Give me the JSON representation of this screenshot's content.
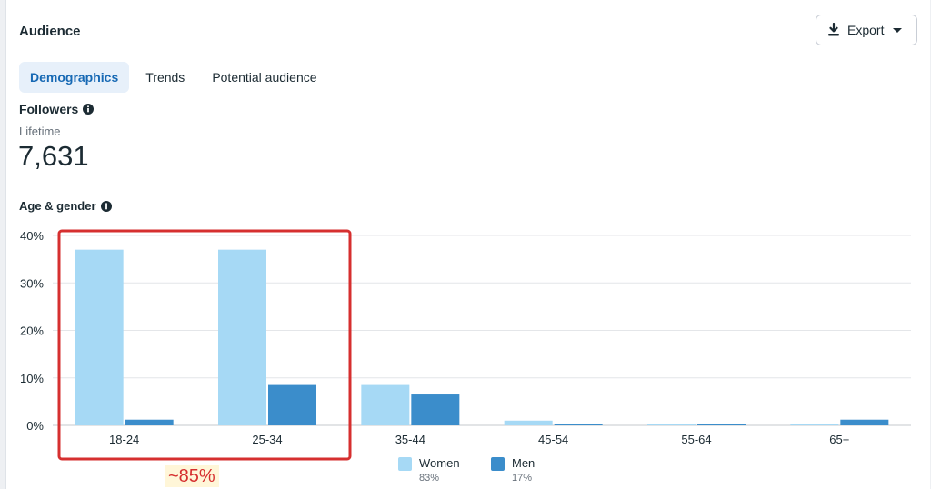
{
  "header": {
    "title": "Audience",
    "export_label": "Export"
  },
  "tabs": [
    {
      "label": "Demographics",
      "active": true
    },
    {
      "label": "Trends",
      "active": false
    },
    {
      "label": "Potential audience",
      "active": false
    }
  ],
  "followers": {
    "label": "Followers",
    "period": "Lifetime",
    "value": "7,631"
  },
  "age_gender": {
    "label": "Age & gender"
  },
  "legend": [
    {
      "name": "Women",
      "pct": "83%",
      "color": "#a6d9f5"
    },
    {
      "name": "Men",
      "pct": "17%",
      "color": "#3b8dcb"
    }
  ],
  "annotation": {
    "text": "~85%",
    "color": "#d62f2f"
  },
  "chart_data": {
    "type": "bar",
    "categories": [
      "18-24",
      "25-34",
      "35-44",
      "45-54",
      "55-64",
      "65+"
    ],
    "series": [
      {
        "name": "Women",
        "values": [
          37,
          37,
          8.5,
          1.0,
          0.2,
          0.2
        ],
        "color": "#a6d9f5"
      },
      {
        "name": "Men",
        "values": [
          1.2,
          8.5,
          6.5,
          0.3,
          0.3,
          1.2
        ],
        "color": "#3b8dcb"
      }
    ],
    "yticks": [
      "0%",
      "10%",
      "20%",
      "30%",
      "40%"
    ],
    "ylim": [
      0,
      40
    ],
    "grid": true,
    "legend_position": "bottom"
  }
}
